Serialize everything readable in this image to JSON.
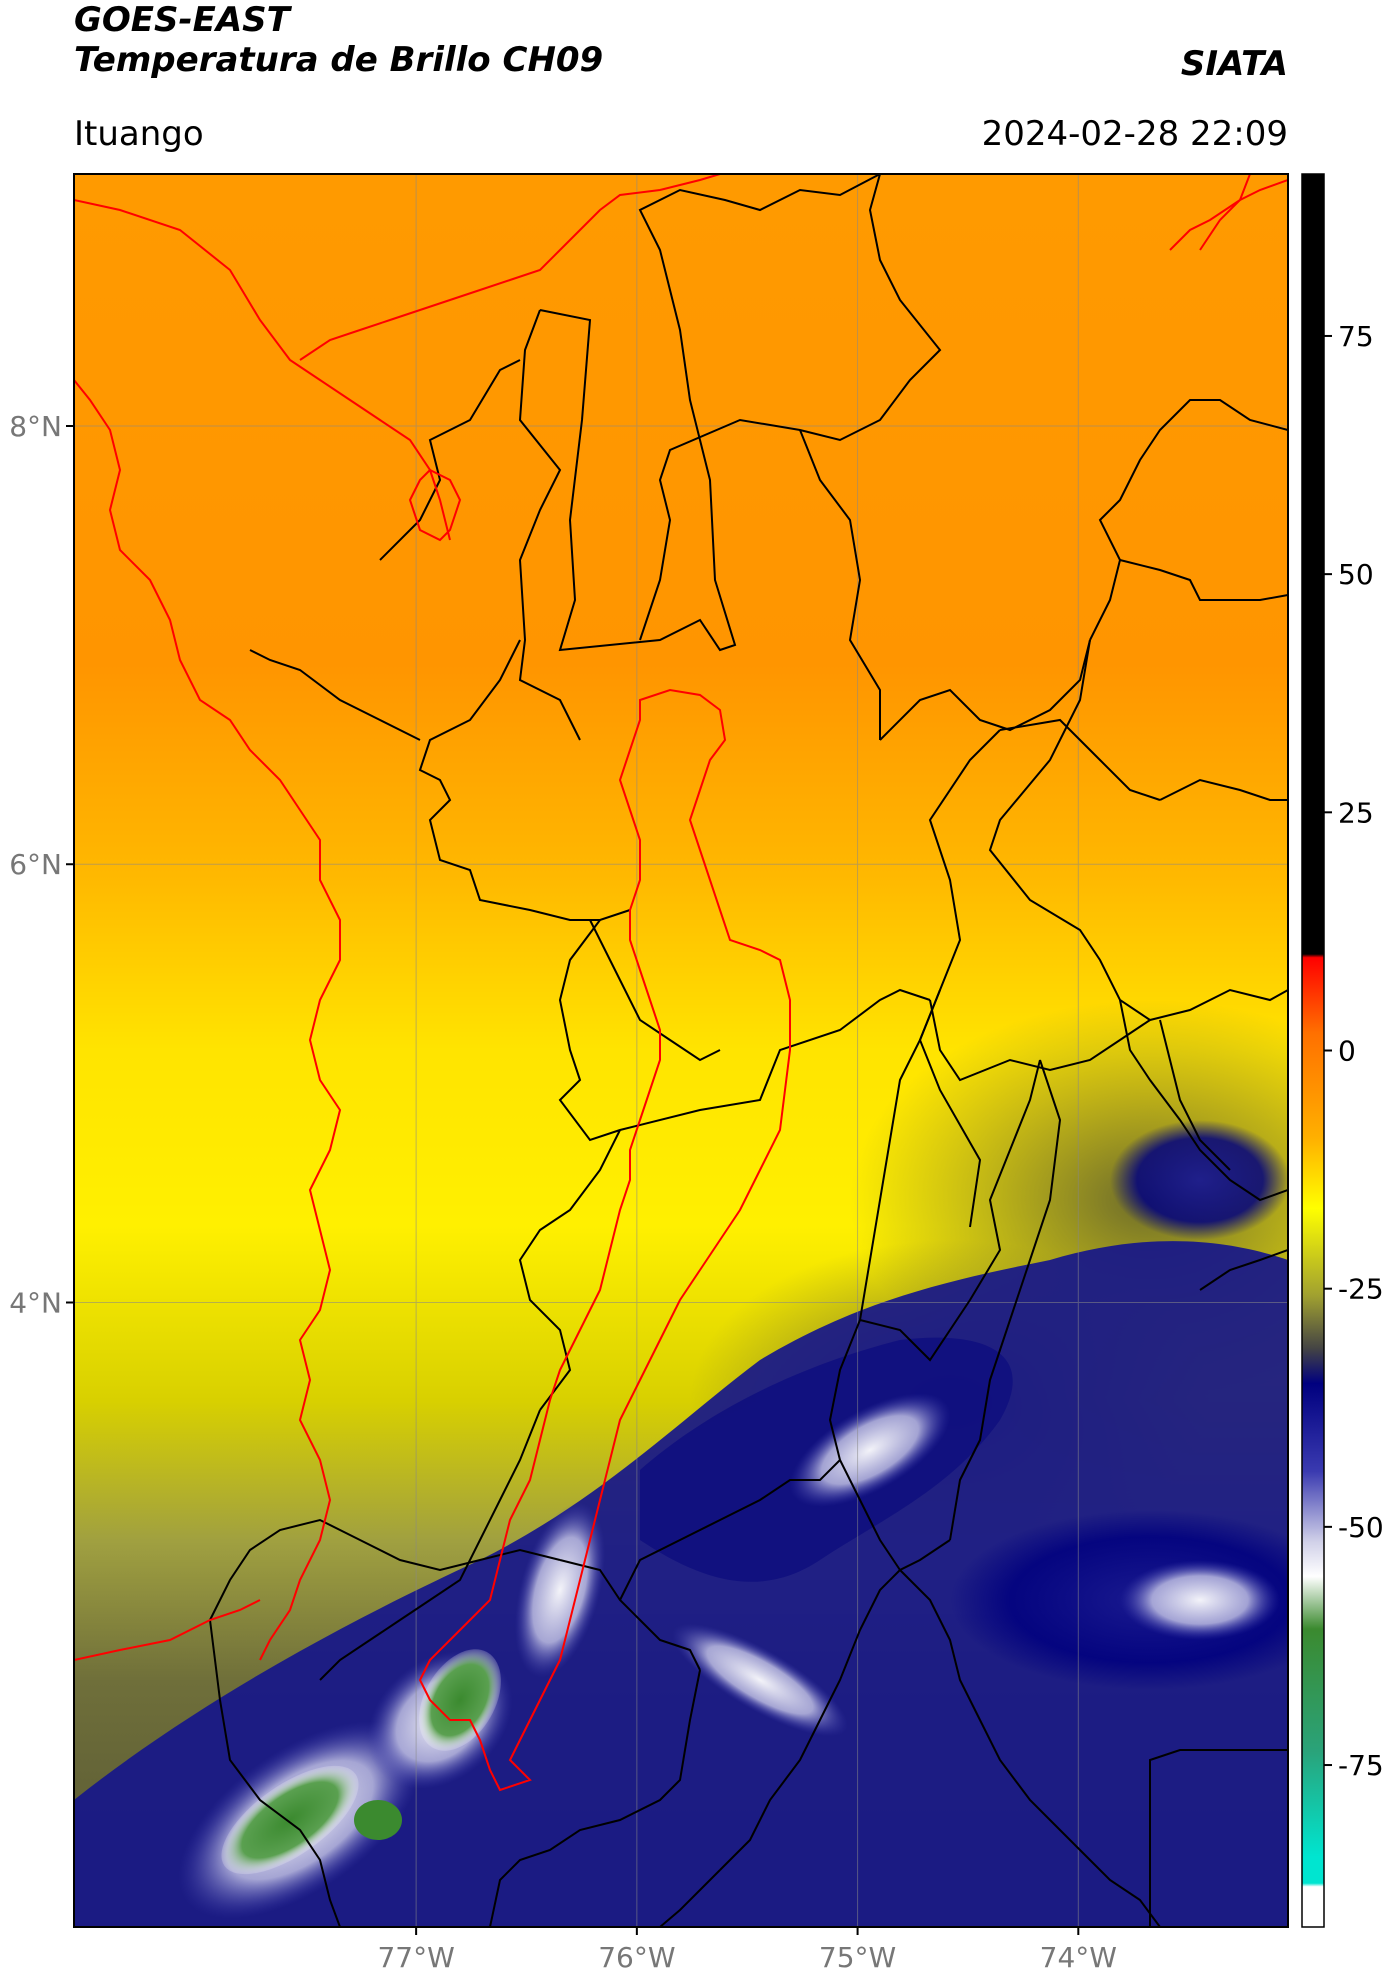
{
  "header": {
    "satellite": "GOES-EAST",
    "product": "Temperatura de Brillo CH09",
    "agency": "SIATA",
    "region": "Ituango",
    "datetime": "2024-02-28 22:09"
  },
  "map_data": {
    "type": "heatmap",
    "lon_range": [
      -78.55,
      -73.05
    ],
    "lat_range": [
      1.15,
      9.15
    ],
    "lat_ticks": [
      {
        "value": 8,
        "label": "8°N"
      },
      {
        "value": 6,
        "label": "6°N"
      },
      {
        "value": 4,
        "label": "4°N"
      }
    ],
    "lon_ticks": [
      {
        "value": -77,
        "label": "77°W"
      },
      {
        "value": -76,
        "label": "76°W"
      },
      {
        "value": -75,
        "label": "75°W"
      },
      {
        "value": -74,
        "label": "74°W"
      }
    ],
    "grid": true,
    "colorbar": {
      "range": [
        -92,
        92
      ],
      "ticks": [
        75,
        50,
        25,
        0,
        -25,
        -50,
        -75
      ],
      "colors": {
        "black": "#000000",
        "red": "#ff0000",
        "orange": "#ff9800",
        "yellow": "#ffff00",
        "olive": "#6f6f3a",
        "navy": "#00007f",
        "white": "#ffffff",
        "green": "#3b8a2f",
        "cyan": "#00e5d0"
      }
    },
    "boundary_colors": {
      "departments": "#000000",
      "highlight": "#ff0000"
    }
  }
}
